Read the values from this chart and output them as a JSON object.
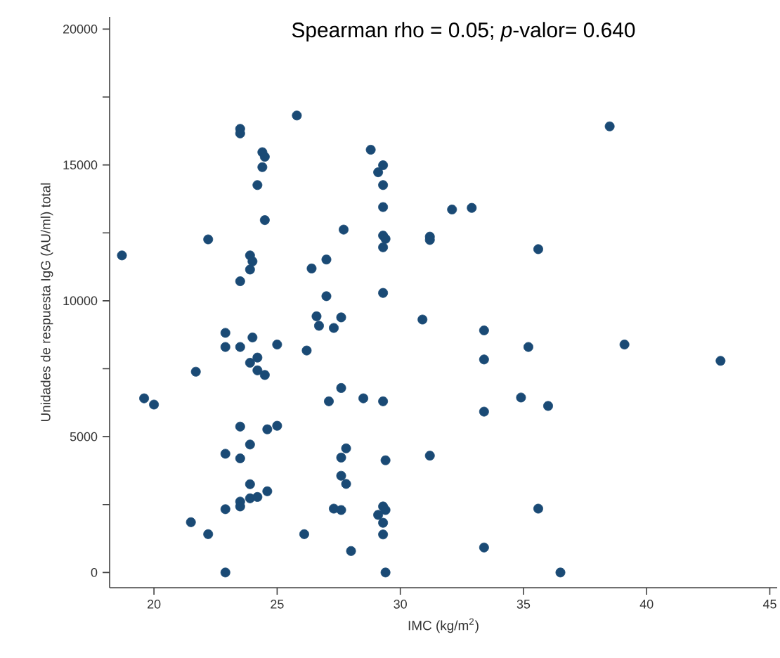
{
  "chart_data": {
    "type": "scatter",
    "title": "Spearman rho = 0.05; *p*-valor= 0.640",
    "xlabel": "IMC (kg/m$^{2}$)",
    "ylabel": "Unidades de respuesta IgG (AU/ml) total",
    "xlim": [
      18.2,
      45.3
    ],
    "ylim": [
      -560,
      20450
    ],
    "xticks": [
      20,
      25,
      30,
      35,
      40,
      45
    ],
    "yticks": [
      0,
      {
        "value": 2500,
        "label": null
      },
      5000,
      {
        "value": 7500,
        "label": null
      },
      10000,
      {
        "value": 12500,
        "label": null
      },
      15000,
      {
        "value": 17500,
        "label": null
      },
      20000
    ],
    "grid": false,
    "marker": "circle",
    "series": [
      {
        "color": "#1a4a75",
        "x": [
          18.7,
          19.6,
          20.0,
          21.7,
          21.5,
          22.2,
          22.2,
          22.9,
          22.9,
          22.9,
          22.9,
          22.9,
          23.5,
          23.5,
          23.5,
          23.5,
          23.5,
          23.5,
          23.5,
          23.5,
          23.9,
          24.0,
          23.9,
          23.9,
          24.0,
          24.2,
          24.2,
          24.5,
          25.0,
          26.2,
          24.6,
          25.0,
          23.9,
          23.9,
          23.9,
          24.2,
          24.6,
          26.1,
          25.8,
          24.4,
          24.5,
          24.4,
          24.2,
          24.5,
          26.4,
          27.0,
          27.0,
          26.6,
          26.7,
          27.3,
          27.6,
          27.1,
          28.8,
          29.3,
          29.1,
          29.3,
          29.3,
          32.1,
          32.9,
          27.7,
          29.3,
          29.4,
          29.3,
          31.2,
          31.2,
          35.6,
          29.3,
          38.5,
          39.1,
          43.0,
          36.0,
          30.9,
          33.4,
          35.2,
          33.4,
          27.6,
          28.5,
          29.3,
          33.4,
          34.9,
          27.8,
          27.6,
          29.4,
          31.2,
          27.6,
          27.8,
          27.3,
          27.6,
          29.3,
          29.4,
          29.1,
          29.3,
          29.3,
          35.6,
          28.0,
          33.4,
          29.4,
          36.5
        ],
        "values": [
          11670,
          6410,
          6180,
          7390,
          1850,
          1410,
          12260,
          0,
          2330,
          4370,
          8300,
          8820,
          16330,
          16160,
          10720,
          8300,
          5370,
          4200,
          2610,
          2430,
          11670,
          11450,
          11150,
          7720,
          8650,
          7910,
          7440,
          7270,
          8390,
          8170,
          5270,
          5400,
          4710,
          3250,
          2730,
          2780,
          2990,
          1410,
          16820,
          15470,
          15300,
          14920,
          14260,
          12970,
          11190,
          11520,
          10170,
          9430,
          9080,
          9000,
          9390,
          6300,
          15560,
          14990,
          14730,
          14260,
          13450,
          13360,
          13420,
          12620,
          12400,
          12280,
          11970,
          12360,
          12240,
          11900,
          10290,
          16420,
          8390,
          7790,
          6130,
          9310,
          8910,
          8300,
          7840,
          6790,
          6410,
          6300,
          5920,
          6440,
          4570,
          4230,
          4130,
          4300,
          3560,
          3260,
          2350,
          2300,
          2430,
          2300,
          2120,
          1830,
          1400,
          2350,
          790,
          920,
          0,
          0
        ]
      }
    ]
  }
}
